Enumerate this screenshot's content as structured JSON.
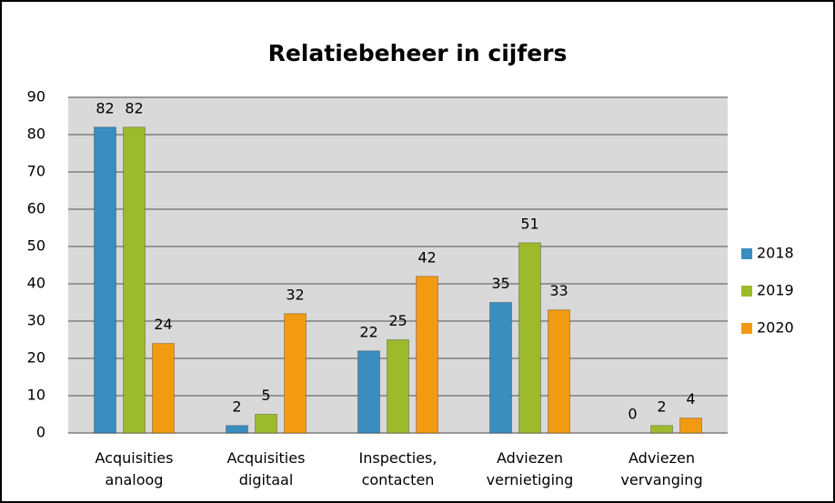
{
  "chart_data": {
    "type": "bar",
    "title": "Relatiebeheer in cijfers",
    "categories": [
      "Acquisities analoog",
      "Acquisities digitaal",
      "Inspecties, contacten",
      "Adviezen vernietiging",
      "Adviezen vervanging"
    ],
    "series": [
      {
        "name": "2018",
        "color": "#3a8dbf",
        "values": [
          82,
          2,
          22,
          35,
          0
        ]
      },
      {
        "name": "2019",
        "color": "#9cba2c",
        "values": [
          82,
          5,
          25,
          51,
          2
        ]
      },
      {
        "name": "2020",
        "color": "#f29a12",
        "values": [
          24,
          32,
          42,
          33,
          4
        ]
      }
    ],
    "ylim": [
      0,
      90
    ],
    "yticks": [
      0,
      10,
      20,
      30,
      40,
      50,
      60,
      70,
      80,
      90
    ],
    "grid": true,
    "legend": "right"
  }
}
